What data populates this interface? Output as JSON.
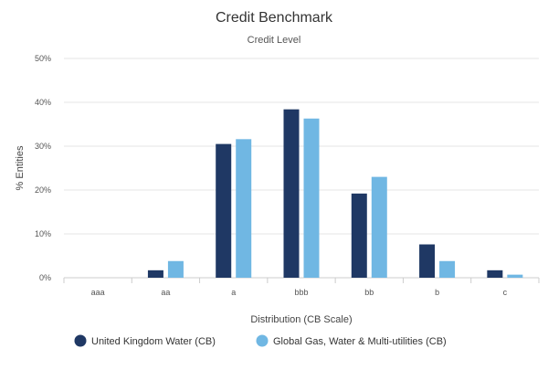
{
  "chart_data": {
    "type": "bar",
    "title": "Credit Benchmark",
    "subtitle": "Credit Level",
    "xlabel": "Distribution (CB Scale)",
    "ylabel": "% Entities",
    "ylim": [
      0,
      50
    ],
    "yticks": [
      "0%",
      "10%",
      "20%",
      "30%",
      "40%",
      "50%"
    ],
    "ytick_values": [
      0,
      10,
      20,
      30,
      40,
      50
    ],
    "grid": true,
    "legend_position": "bottom-left",
    "categories": [
      "aaa",
      "aa",
      "a",
      "bbb",
      "bb",
      "b",
      "c"
    ],
    "series": [
      {
        "name": "United Kingdom Water (CB)",
        "color": "#1f3864",
        "values": [
          0,
          1.7,
          30.5,
          38.4,
          19.2,
          7.6,
          1.7
        ]
      },
      {
        "name": "Global Gas, Water & Multi-utilities (CB)",
        "color": "#70b7e3",
        "values": [
          0,
          3.8,
          31.6,
          36.3,
          23.0,
          3.8,
          0.7
        ]
      }
    ]
  }
}
